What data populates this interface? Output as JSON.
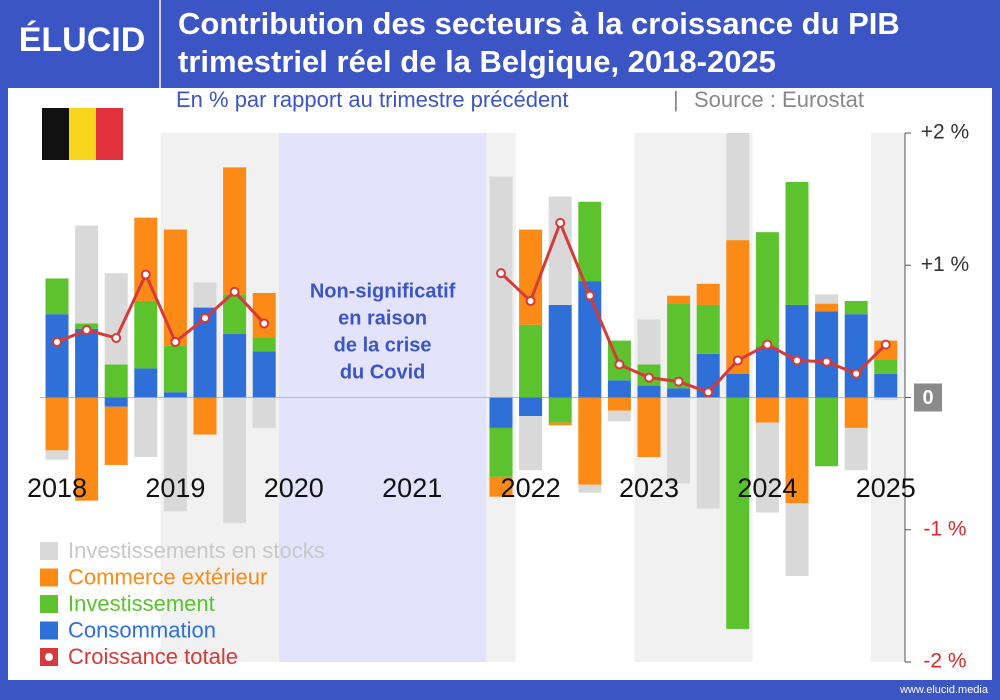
{
  "brand": "ÉLUCID",
  "footer": "www.elucid.media",
  "chart_data": {
    "type": "bar",
    "stacked": true,
    "title": [
      "Contribution des secteurs à la croissance du PIB",
      "trimestriel réel de la Belgique, 2018-2025"
    ],
    "subtitle": "En % par rapport au trimestre précédent",
    "source": "Source : Eurostat",
    "annotation": [
      "Non-significatif",
      "en raison",
      "de la crise",
      "du Covid"
    ],
    "categories": [
      "2018",
      null,
      null,
      null,
      "2019",
      null,
      null,
      null,
      "2020",
      null,
      null,
      null,
      "2021",
      null,
      null,
      null,
      "2022",
      null,
      null,
      null,
      "2023",
      null,
      null,
      null,
      "2024",
      null,
      null,
      null,
      "2025"
    ],
    "ylim": [
      -2,
      2
    ],
    "yticks": [
      {
        "value": 2,
        "label": "+2 %"
      },
      {
        "value": 1,
        "label": "+1 %"
      },
      0,
      {
        "value": -1,
        "label": "-1 %"
      },
      {
        "value": -2,
        "label": "-2 %"
      }
    ],
    "series": [
      {
        "name": "Investissements en stocks",
        "color": "#d9d9d9",
        "values": [
          -0.07,
          0.74,
          0.69,
          -0.45,
          -0.86,
          0.19,
          -0.95,
          -0.23,
          null,
          null,
          null,
          null,
          null,
          null,
          null,
          1.67,
          -0.41,
          0.82,
          -0.06,
          -0.08,
          0.34,
          -0.65,
          -0.84,
          0.81,
          -0.68,
          -0.55,
          0.07,
          -0.32,
          -0.02
        ]
      },
      {
        "name": "Commerce extérieur",
        "color": "#fb8a16",
        "values": [
          -0.4,
          -0.78,
          -0.44,
          0.63,
          0.88,
          -0.28,
          0.96,
          0.34,
          null,
          null,
          null,
          null,
          null,
          null,
          null,
          -0.15,
          0.72,
          -0.02,
          -0.66,
          -0.1,
          -0.45,
          0.06,
          0.16,
          1.01,
          -0.19,
          -0.8,
          0.06,
          -0.23,
          0.14
        ]
      },
      {
        "name": "Investissement",
        "color": "#5cc22e",
        "values": [
          0.27,
          0.04,
          0.25,
          0.51,
          0.35,
          0,
          0.3,
          0.1,
          null,
          null,
          null,
          null,
          null,
          null,
          null,
          -0.37,
          0.55,
          -0.19,
          0.6,
          0.3,
          0.16,
          0.64,
          0.37,
          -1.75,
          0.87,
          0.93,
          -0.52,
          0.1,
          0.11
        ]
      },
      {
        "name": "Consommation",
        "color": "#2e6fd8",
        "values": [
          0.63,
          0.52,
          -0.07,
          0.22,
          0.04,
          0.68,
          0.48,
          0.35,
          null,
          null,
          null,
          null,
          null,
          null,
          null,
          -0.23,
          -0.14,
          0.7,
          0.88,
          0.13,
          0.09,
          0.07,
          0.33,
          0.18,
          0.38,
          0.7,
          0.65,
          0.63,
          0.18
        ]
      },
      {
        "name": "Croissance totale",
        "type": "line",
        "color": "#d63a3a",
        "values": [
          0.42,
          0.51,
          0.45,
          0.93,
          0.42,
          0.6,
          0.8,
          0.56,
          null,
          null,
          null,
          null,
          null,
          null,
          null,
          0.94,
          0.73,
          1.32,
          0.77,
          0.25,
          0.15,
          0.12,
          0.04,
          0.28,
          0.4,
          0.28,
          0.27,
          0.18,
          0.4
        ]
      }
    ]
  }
}
